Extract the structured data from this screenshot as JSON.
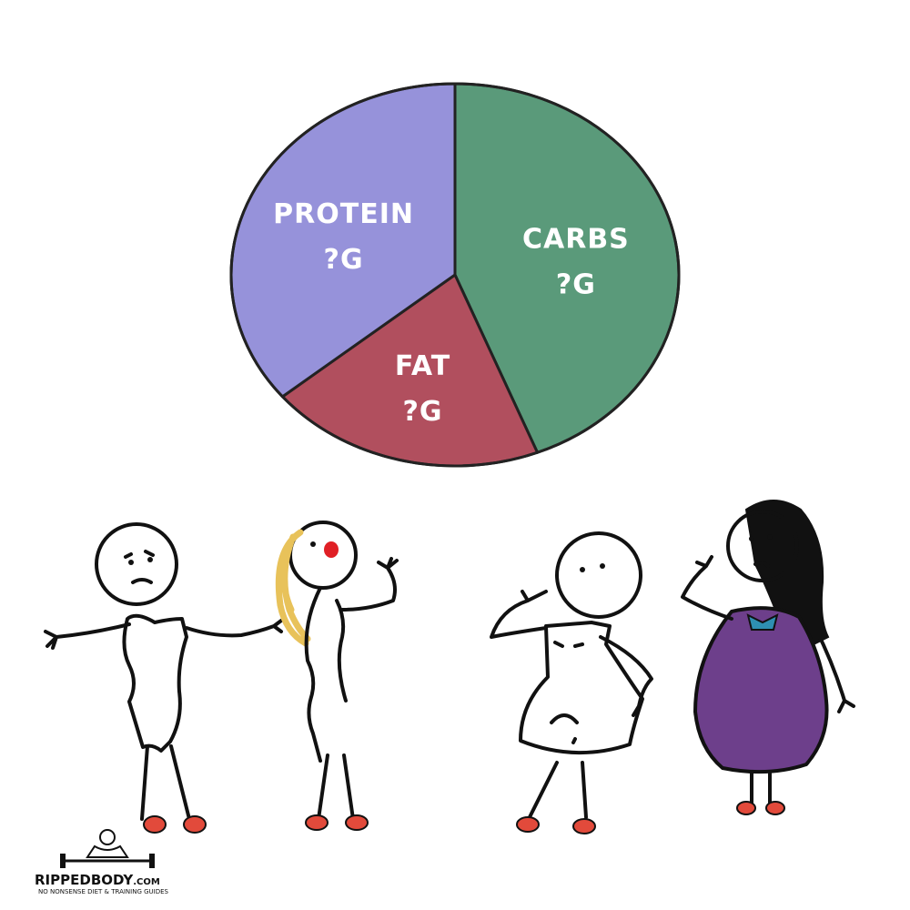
{
  "chart_data": {
    "type": "pie",
    "title": "",
    "slices": [
      {
        "label": "CARBS",
        "amount": "?G",
        "value": 44,
        "color": "#5a9a7a"
      },
      {
        "label": "FAT",
        "amount": "?G",
        "value": 20,
        "color": "#b14f5e"
      },
      {
        "label": "PROTEIN",
        "amount": "?G",
        "value": 36,
        "color": "#9692da"
      }
    ]
  },
  "logo": {
    "brand": "RIPPEDBODY",
    "suffix": ".COM",
    "tagline": "NO NONSENSE DIET & TRAINING GUIDES"
  }
}
